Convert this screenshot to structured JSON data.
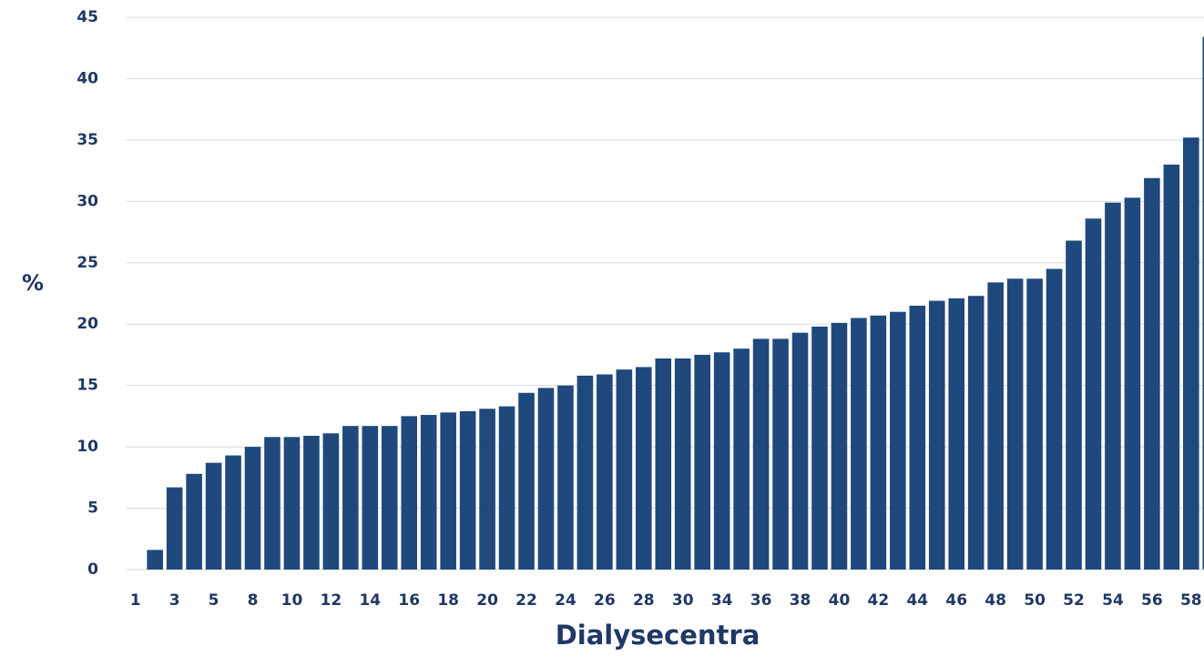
{
  "chart_data": {
    "type": "bar",
    "categories": [
      "1",
      null,
      "3",
      null,
      "5",
      null,
      "8",
      null,
      "10",
      null,
      "12",
      null,
      "14",
      null,
      "16",
      null,
      "18",
      null,
      "20",
      null,
      "22",
      null,
      "24",
      null,
      "26",
      null,
      "28",
      null,
      "30",
      null,
      "34",
      null,
      "36",
      null,
      "38",
      null,
      "40",
      null,
      "42",
      null,
      "44",
      null,
      "46",
      null,
      "48",
      null,
      "50",
      null,
      "52",
      null,
      "54",
      null,
      "56",
      null,
      "58",
      null
    ],
    "values": [
      0,
      1.6,
      6.7,
      7.8,
      8.7,
      9.3,
      10.0,
      10.8,
      10.8,
      10.9,
      11.1,
      11.7,
      11.7,
      11.7,
      12.5,
      12.6,
      12.8,
      12.9,
      13.1,
      13.3,
      14.4,
      14.8,
      15.0,
      15.8,
      15.9,
      16.3,
      16.5,
      17.2,
      17.2,
      17.5,
      17.7,
      18.0,
      18.8,
      18.8,
      19.3,
      19.8,
      20.1,
      20.5,
      20.7,
      21.0,
      21.5,
      21.9,
      22.1,
      22.3,
      23.4,
      23.7,
      23.7,
      24.5,
      26.8,
      28.6,
      29.9,
      30.3,
      31.9,
      33.0,
      35.2,
      43.4
    ],
    "color": "#1f497d",
    "ylabel": "%",
    "xlabel": "Dialysecentra",
    "ylim": [
      0,
      45
    ],
    "yticks": [
      0,
      5,
      10,
      15,
      20,
      25,
      30,
      35,
      40,
      45
    ],
    "grid": true
  }
}
